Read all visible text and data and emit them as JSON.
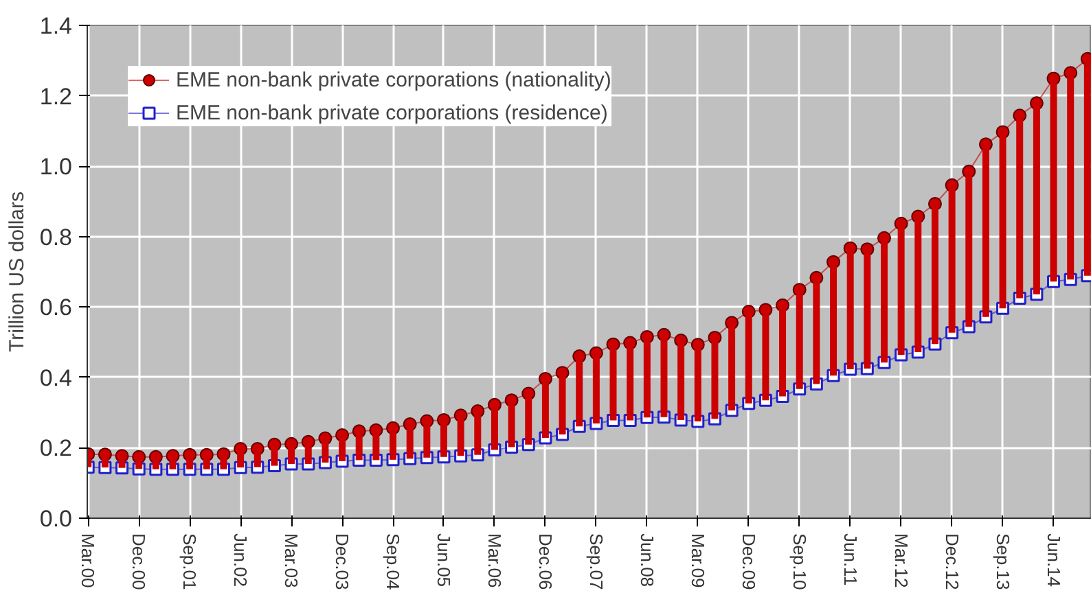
{
  "chart_data": {
    "type": "line",
    "ylabel": "Trillion US dollars",
    "categories": [
      "Mar.00",
      null,
      null,
      "Dec.00",
      null,
      null,
      "Sep.01",
      null,
      null,
      "Jun.02",
      null,
      null,
      "Mar.03",
      null,
      null,
      "Dec.03",
      null,
      null,
      "Sep.04",
      null,
      null,
      "Jun.05",
      null,
      null,
      "Mar.06",
      null,
      null,
      "Dec.06",
      null,
      null,
      "Sep.07",
      null,
      null,
      "Jun.08",
      null,
      null,
      "Mar.09",
      null,
      null,
      "Dec.09",
      null,
      null,
      "Sep.10",
      null,
      null,
      "Jun.11",
      null,
      null,
      "Mar.12",
      null,
      null,
      "Dec.12",
      null,
      null,
      "Sep.13",
      null,
      null,
      "Jun.14",
      null,
      null
    ],
    "series": [
      {
        "name": "EME non-bank private corporations (nationality)",
        "color": "#cc0000",
        "marker": "circle",
        "errors": [
          [
            0.145,
            0.182
          ],
          [
            0.144,
            0.181
          ],
          [
            0.143,
            0.177
          ],
          [
            0.14,
            0.174
          ],
          [
            0.139,
            0.174
          ],
          [
            0.139,
            0.177
          ],
          [
            0.139,
            0.18
          ],
          [
            0.139,
            0.18
          ],
          [
            0.139,
            0.182
          ],
          [
            0.144,
            0.197
          ],
          [
            0.145,
            0.197
          ],
          [
            0.149,
            0.209
          ],
          [
            0.154,
            0.211
          ],
          [
            0.154,
            0.217
          ],
          [
            0.158,
            0.227
          ],
          [
            0.162,
            0.236
          ],
          [
            0.165,
            0.247
          ],
          [
            0.165,
            0.25
          ],
          [
            0.166,
            0.256
          ],
          [
            0.169,
            0.267
          ],
          [
            0.172,
            0.276
          ],
          [
            0.174,
            0.279
          ],
          [
            0.177,
            0.292
          ],
          [
            0.18,
            0.304
          ],
          [
            0.194,
            0.322
          ],
          [
            0.202,
            0.335
          ],
          [
            0.209,
            0.354
          ],
          [
            0.228,
            0.396
          ],
          [
            0.238,
            0.413
          ],
          [
            0.261,
            0.46
          ],
          [
            0.269,
            0.469
          ],
          [
            0.278,
            0.494
          ],
          [
            0.278,
            0.498
          ],
          [
            0.286,
            0.515
          ],
          [
            0.287,
            0.521
          ],
          [
            0.279,
            0.505
          ],
          [
            0.275,
            0.493
          ],
          [
            0.282,
            0.513
          ],
          [
            0.306,
            0.555
          ],
          [
            0.326,
            0.587
          ],
          [
            0.335,
            0.592
          ],
          [
            0.346,
            0.605
          ],
          [
            0.367,
            0.649
          ],
          [
            0.381,
            0.683
          ],
          [
            0.405,
            0.728
          ],
          [
            0.423,
            0.767
          ],
          [
            0.425,
            0.764
          ],
          [
            0.442,
            0.796
          ],
          [
            0.464,
            0.837
          ],
          [
            0.472,
            0.857
          ],
          [
            0.495,
            0.893
          ],
          [
            0.527,
            0.946
          ],
          [
            0.544,
            0.985
          ],
          [
            0.572,
            1.062
          ],
          [
            0.596,
            1.097
          ],
          [
            0.625,
            1.144
          ],
          [
            0.636,
            1.179
          ],
          [
            0.672,
            1.249
          ],
          [
            0.678,
            1.265
          ],
          [
            0.689,
            1.305
          ]
        ],
        "values": [
          0.182,
          0.181,
          0.177,
          0.174,
          0.174,
          0.177,
          0.18,
          0.18,
          0.182,
          0.197,
          0.197,
          0.209,
          0.211,
          0.217,
          0.227,
          0.236,
          0.247,
          0.25,
          0.256,
          0.267,
          0.276,
          0.279,
          0.292,
          0.304,
          0.322,
          0.335,
          0.354,
          0.396,
          0.413,
          0.46,
          0.469,
          0.494,
          0.498,
          0.515,
          0.521,
          0.505,
          0.493,
          0.513,
          0.555,
          0.587,
          0.592,
          0.605,
          0.649,
          0.683,
          0.728,
          0.767,
          0.764,
          0.796,
          0.837,
          0.857,
          0.893,
          0.946,
          0.985,
          1.062,
          1.097,
          1.144,
          1.179,
          1.249,
          1.265,
          1.305
        ]
      },
      {
        "name": "EME non-bank private corporations (residence)",
        "color": "#2020cc",
        "marker": "square",
        "values": [
          0.145,
          0.144,
          0.143,
          0.14,
          0.139,
          0.139,
          0.139,
          0.139,
          0.139,
          0.144,
          0.145,
          0.149,
          0.154,
          0.154,
          0.158,
          0.162,
          0.165,
          0.165,
          0.166,
          0.169,
          0.172,
          0.174,
          0.177,
          0.18,
          0.194,
          0.202,
          0.209,
          0.228,
          0.238,
          0.261,
          0.269,
          0.278,
          0.278,
          0.286,
          0.287,
          0.279,
          0.275,
          0.282,
          0.306,
          0.326,
          0.335,
          0.346,
          0.367,
          0.381,
          0.405,
          0.423,
          0.425,
          0.442,
          0.464,
          0.472,
          0.495,
          0.527,
          0.544,
          0.572,
          0.596,
          0.625,
          0.636,
          0.672,
          0.678,
          0.689
        ]
      }
    ],
    "ylim": [
      0,
      1.4
    ],
    "yticks": [
      {
        "value": 0,
        "label": "0.0"
      },
      0.2,
      0.4,
      0.6,
      0.8,
      {
        "value": 1,
        "label": "1.0"
      },
      1.2,
      1.4
    ],
    "grid": true,
    "legend": "top left"
  }
}
